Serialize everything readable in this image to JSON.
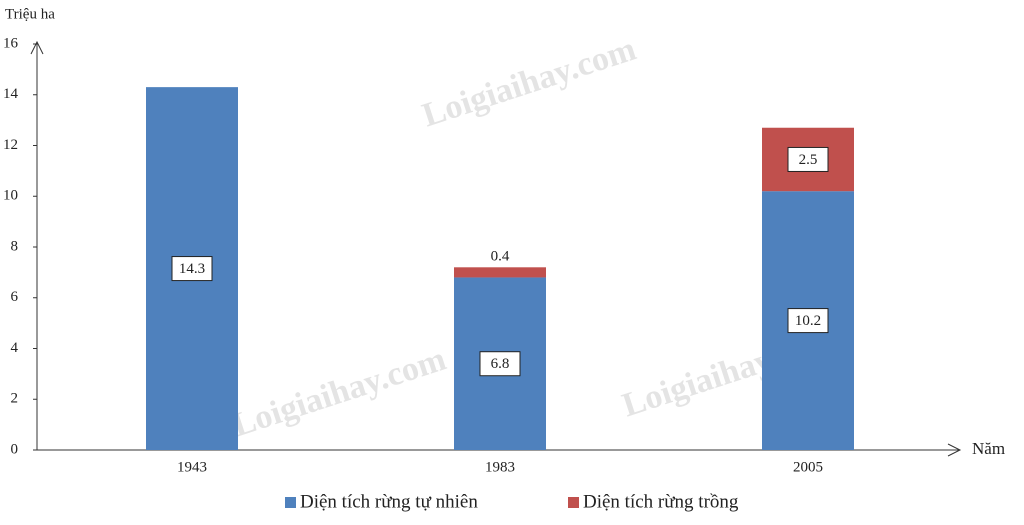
{
  "chart_data": {
    "type": "stacked-bar",
    "y_label": "Triệu ha",
    "x_label": "Năm",
    "categories": [
      "1943",
      "1983",
      "2005"
    ],
    "series": [
      {
        "name": "Diện tích rừng tự nhiên",
        "color": "#4f81bd",
        "values": [
          14.3,
          6.8,
          10.2
        ]
      },
      {
        "name": "Diện tích rừng trồng",
        "color": "#c0504d",
        "values": [
          null,
          0.4,
          2.5
        ]
      }
    ],
    "ylim": [
      0,
      16
    ],
    "yticks": [
      0,
      2,
      4,
      6,
      8,
      10,
      12,
      14,
      16
    ],
    "watermark": "Loigiaihay.com"
  }
}
